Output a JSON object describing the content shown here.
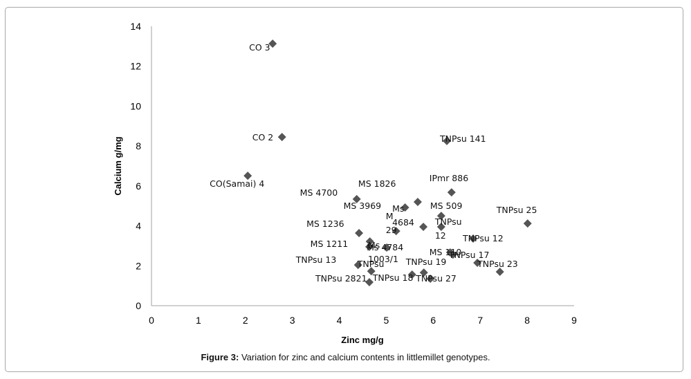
{
  "chart_data": {
    "type": "scatter",
    "title": "",
    "xlabel": "Zinc mg/g",
    "ylabel": "Calcium g/mg",
    "xlim": [
      0,
      9
    ],
    "ylim": [
      0,
      14
    ],
    "x_ticks": [
      "0",
      "1",
      "2",
      "3",
      "4",
      "5",
      "6",
      "7",
      "8",
      "9"
    ],
    "y_ticks": [
      "0",
      "2",
      "4",
      "6",
      "8",
      "10",
      "12",
      "14"
    ],
    "grid": false,
    "legend": "none",
    "marker": "diamond",
    "marker_color": "#555555",
    "points": [
      {
        "label": "CO 3",
        "x": 2.58,
        "y": 13.13
      },
      {
        "label": "CO 2",
        "x": 2.78,
        "y": 8.45
      },
      {
        "label": "CO(Samai) 4",
        "x": 2.05,
        "y": 6.51
      },
      {
        "label": "TNPsu 141",
        "x": 6.29,
        "y": 8.25
      },
      {
        "label": "IPmr 886",
        "x": 6.39,
        "y": 5.68
      },
      {
        "label": "MS 4700",
        "x": 4.37,
        "y": 5.34
      },
      {
        "label": "MS 1826",
        "x": 5.67,
        "y": 5.2
      },
      {
        "label": "MS 3969",
        "x": 5.4,
        "y": 4.92
      },
      {
        "label": "MS 509",
        "x": 6.17,
        "y": 4.5
      },
      {
        "label": "TNPsu 25",
        "x": 8.01,
        "y": 4.12
      },
      {
        "label": "Ms 4684",
        "x": 5.79,
        "y": 3.95
      },
      {
        "label": "MS 1236",
        "x": 4.42,
        "y": 3.64
      },
      {
        "label": "TNPsu 12",
        "x": 6.85,
        "y": 3.36
      },
      {
        "label": "MS 1211",
        "x": 4.65,
        "y": 3.22
      },
      {
        "label": "M 29",
        "x": 5.21,
        "y": 3.74
      },
      {
        "label": "Ms 4784",
        "x": 5.01,
        "y": 2.91
      },
      {
        "label": "Ms 1003/1",
        "x": 4.64,
        "y": 2.95
      },
      {
        "label": "TNPsu 12",
        "x": 6.17,
        "y": 3.95
      },
      {
        "label": "MS 110",
        "x": 6.36,
        "y": 2.67
      },
      {
        "label": "TNPsu 17",
        "x": 6.42,
        "y": 2.56
      },
      {
        "label": "TNPsu 13",
        "x": 4.4,
        "y": 2.04
      },
      {
        "label": "TNPsu",
        "x": 4.68,
        "y": 1.73
      },
      {
        "label": "TNPsu 23",
        "x": 6.94,
        "y": 2.15
      },
      {
        "label": "TNPsu 19",
        "x": 5.8,
        "y": 1.66
      },
      {
        "label": "TNPsu 18",
        "x": 5.55,
        "y": 1.56
      },
      {
        "label": "TNPsu 27",
        "x": 5.94,
        "y": 1.35
      },
      {
        "label": "",
        "x": 7.42,
        "y": 1.7
      },
      {
        "label": "TNPsu 2821",
        "x": 4.64,
        "y": 1.18
      }
    ]
  },
  "caption": {
    "prefix": "Figure 3:",
    "text": " Variation for zinc and calcium contents in littlemillet genotypes."
  }
}
